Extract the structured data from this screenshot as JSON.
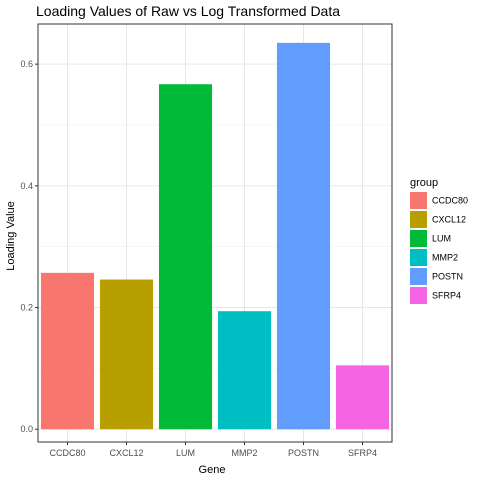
{
  "chart_data": {
    "type": "bar",
    "title": "Loading Values of Raw vs Log Transformed Data",
    "xlabel": "Gene",
    "ylabel": "Loading Value",
    "categories": [
      "CCDC80",
      "CXCL12",
      "LUM",
      "MMP2",
      "POSTN",
      "SFRP4"
    ],
    "values": [
      0.257,
      0.246,
      0.567,
      0.194,
      0.635,
      0.105
    ],
    "colors": [
      "#F8766D",
      "#B79F00",
      "#00BA38",
      "#00BFC4",
      "#619CFF",
      "#F564E3"
    ],
    "ylim": [
      -0.021,
      0.666
    ],
    "yticks": [
      0.0,
      0.2,
      0.4,
      0.6
    ],
    "ytick_labels": [
      "0.0",
      "0.2",
      "0.4",
      "0.6"
    ],
    "grid": true,
    "legend": {
      "title": "group",
      "position": "right",
      "entries": [
        "CCDC80",
        "CXCL12",
        "LUM",
        "MMP2",
        "POSTN",
        "SFRP4"
      ]
    }
  }
}
